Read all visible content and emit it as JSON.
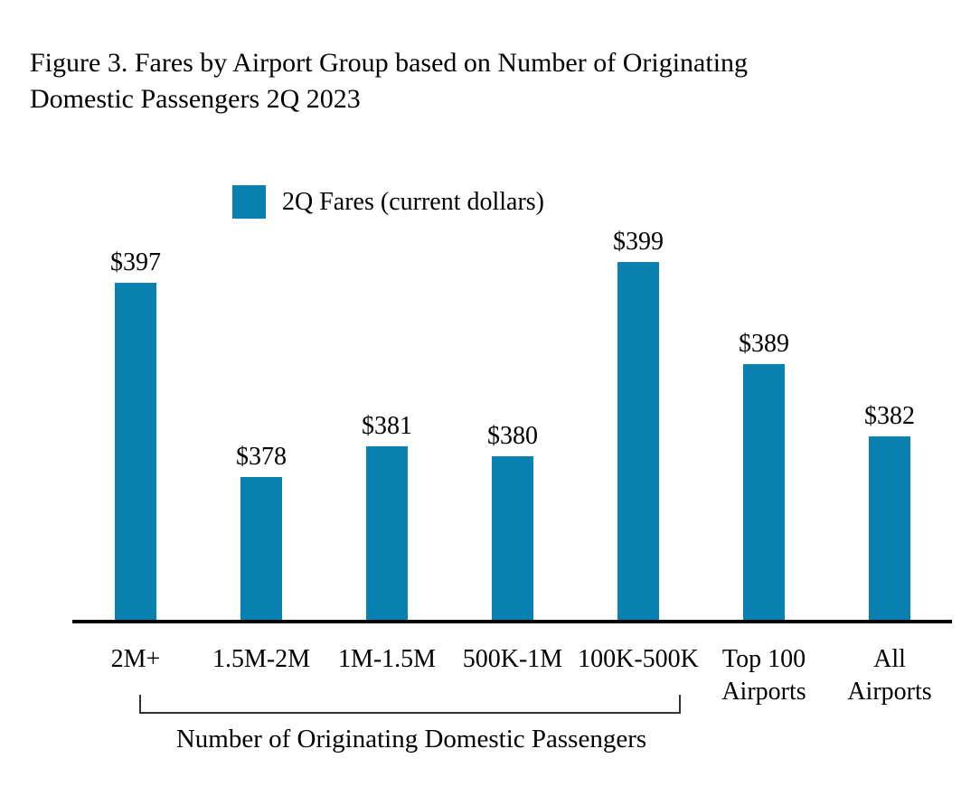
{
  "title": "Figure 3. Fares by Airport Group based on Number of Originating\nDomestic Passengers 2Q 2023",
  "legend": {
    "label": "2Q Fares (current dollars)",
    "swatch_color": "#0880b0"
  },
  "chart_data": {
    "type": "bar",
    "title": "Figure 3. Fares by Airport Group based on Number of Originating Domestic Passengers 2Q 2023",
    "series_name": "2Q Fares (current dollars)",
    "categories": [
      "2M+",
      "1.5M-2M",
      "1M-1.5M",
      "500K-1M",
      "100K-500K",
      "Top 100\nAirports",
      "All\nAirports"
    ],
    "values": [
      397,
      378,
      381,
      380,
      399,
      389,
      382
    ],
    "value_labels": [
      "$397",
      "$378",
      "$381",
      "$380",
      "$399",
      "$389",
      "$382"
    ],
    "bar_color": "#0880b0",
    "xlabel": "",
    "ylabel": "",
    "ylim": [
      364,
      400
    ],
    "grid": false,
    "legend_position": "top-left",
    "group_bracket": {
      "label": "Number of Originating Domestic Passengers",
      "covers_categories": [
        "2M+",
        "1.5M-2M",
        "1M-1.5M",
        "500K-1M",
        "100K-500K"
      ]
    }
  }
}
